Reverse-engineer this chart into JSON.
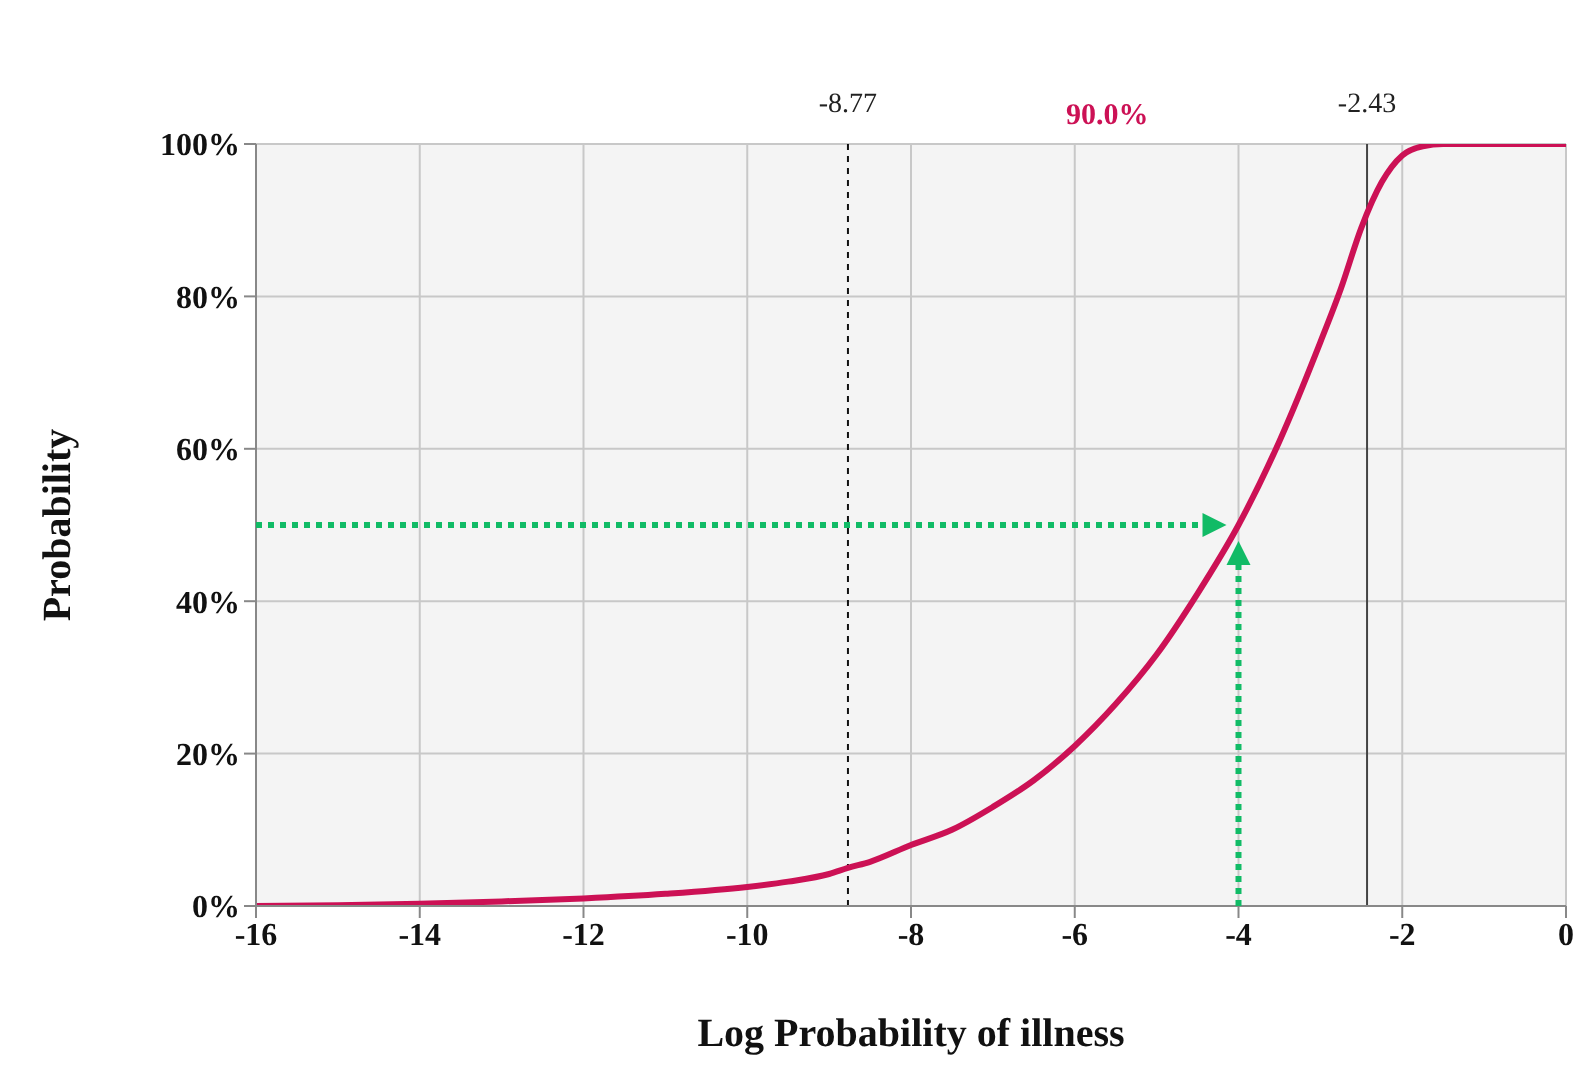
{
  "chart_data": {
    "type": "line",
    "xlabel": "Log Probability of illness",
    "ylabel": "Probability",
    "xlim": [
      -16,
      0
    ],
    "xticks": [
      -16,
      -14,
      -12,
      -10,
      -8,
      -6,
      -4,
      -2,
      0
    ],
    "ylim": [
      0,
      100
    ],
    "yticks": [
      {
        "value": 0,
        "label": "0%"
      },
      {
        "value": 20,
        "label": "20%"
      },
      {
        "value": 40,
        "label": "40%"
      },
      {
        "value": 60,
        "label": "60%"
      },
      {
        "value": 80,
        "label": "80%"
      },
      {
        "value": 100,
        "label": "100%"
      }
    ],
    "grid": true,
    "series": [
      {
        "color": "#cc1155",
        "x": [
          -16,
          -15,
          -14,
          -13,
          -12,
          -11,
          -10,
          -9.5,
          -9,
          -8.77,
          -8.5,
          -8,
          -7.5,
          -7,
          -6.5,
          -6,
          -5.5,
          -5,
          -4.5,
          -4,
          -3.5,
          -3,
          -2.75,
          -2.5,
          -2.25,
          -2,
          -1.75,
          -1.5,
          -1,
          0
        ],
        "values": [
          0,
          0.1,
          0.3,
          0.6,
          1,
          1.6,
          2.5,
          3.2,
          4.2,
          5,
          5.8,
          8,
          10,
          13,
          16.5,
          21,
          26.5,
          33,
          41,
          50,
          61,
          74,
          81,
          89,
          95,
          98.5,
          99.7,
          100,
          100,
          100
        ]
      }
    ],
    "ref_lines": [
      {
        "axis": "x",
        "value": -8.77,
        "label": "-8.77",
        "color": "#111111",
        "line_style": "dotted"
      },
      {
        "axis": "x",
        "value": -2.43,
        "label": "-2.43",
        "color": "#444444",
        "line_style": "solid"
      }
    ],
    "annotations": [
      "90.0%"
    ]
  }
}
